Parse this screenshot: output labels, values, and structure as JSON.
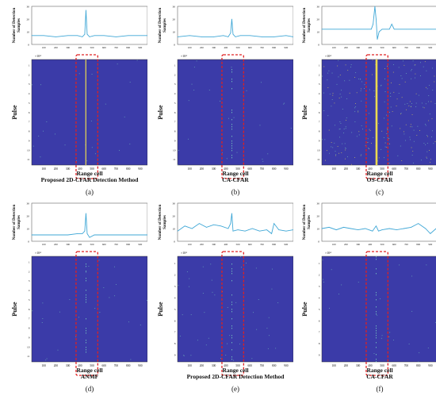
{
  "figure": {
    "panels": [
      {
        "id": "a",
        "letter": "(a)",
        "method": "Proposed 2D-CFAR Detection Method",
        "top_ylabel_line1": "Number of Detection",
        "top_ylabel_line2": "Samples",
        "top_yticks": [
          "30",
          "20",
          "10",
          "0"
        ],
        "scale": "×10⁴",
        "heat_ylabel": "Pulse",
        "heat_yticks": [
          "1",
          "2",
          "3",
          "4",
          "5",
          "6",
          "7",
          "8",
          "9",
          "10",
          "11"
        ],
        "xticks": [
          "100",
          "200",
          "300",
          "400",
          "500",
          "600",
          "700",
          "800",
          "900"
        ],
        "xlabel": "Range cell"
      },
      {
        "id": "b",
        "letter": "(b)",
        "method": "CA-CFAR",
        "top_ylabel_line1": "Number of Detection",
        "top_ylabel_line2": "Samples",
        "top_yticks": [
          "30",
          "20",
          "10",
          "0"
        ],
        "scale": "×10⁴",
        "heat_ylabel": "Pulse",
        "heat_yticks": [
          "1",
          "2",
          "3",
          "4",
          "5",
          "6",
          "7",
          "8",
          "9",
          "10",
          "11"
        ],
        "xticks": [
          "100",
          "200",
          "300",
          "400",
          "500",
          "600",
          "700",
          "800",
          "900"
        ],
        "xlabel": "Range cell"
      },
      {
        "id": "c",
        "letter": "(c)",
        "method": "OS-CFAR",
        "top_ylabel_line1": "Number of Detection",
        "top_ylabel_line2": "Samples",
        "top_yticks": [
          "30",
          "20",
          "10",
          "0"
        ],
        "scale": "×10⁴",
        "heat_ylabel": "Pulse",
        "heat_yticks": [
          "1",
          "2",
          "3",
          "4",
          "5",
          "6",
          "7",
          "8",
          "9",
          "10",
          "11"
        ],
        "xticks": [
          "100",
          "200",
          "300",
          "400",
          "500",
          "600",
          "700",
          "800",
          "900"
        ],
        "xlabel": "Range cell"
      },
      {
        "id": "d",
        "letter": "(d)",
        "method": "ANMF",
        "top_ylabel_line1": "Number of Detection",
        "top_ylabel_line2": "Samples",
        "top_yticks": [
          "30",
          "20",
          "10",
          "0"
        ],
        "scale": "×10⁴",
        "heat_ylabel": "Pulse",
        "heat_yticks": [
          "1",
          "2",
          "3",
          "4",
          "5",
          "6",
          "7",
          "8",
          "9",
          "10",
          "11"
        ],
        "xticks": [
          "100",
          "200",
          "300",
          "400",
          "500",
          "600",
          "700",
          "800",
          "900"
        ],
        "xlabel": "Range cell"
      },
      {
        "id": "e",
        "letter": "(e)",
        "method": "Proposed 2D-CFAR Detection Method",
        "top_ylabel_line1": "Number of Detection",
        "top_ylabel_line2": "Samples",
        "top_yticks": [
          "30",
          "20",
          "10",
          "0"
        ],
        "scale": "×10⁴",
        "heat_ylabel": "Pulse",
        "heat_yticks": [
          "1",
          "2",
          "3",
          "4",
          "5",
          "6",
          "7",
          "8",
          "9"
        ],
        "xticks": [
          "100",
          "200",
          "300",
          "400",
          "500",
          "600",
          "700",
          "800",
          "900"
        ],
        "xlabel": "Range cell"
      },
      {
        "id": "f",
        "letter": "(f)",
        "method": "CA-CFAR",
        "top_ylabel_line1": "Number of Detection",
        "top_ylabel_line2": "Samples",
        "top_yticks": [
          "30",
          "20",
          "10",
          "0"
        ],
        "scale": "×10⁴",
        "heat_ylabel": "Pulse",
        "heat_yticks": [
          "1",
          "2",
          "3",
          "4",
          "5",
          "6",
          "7",
          "8",
          "9"
        ],
        "xticks": [
          "100",
          "200",
          "300",
          "400",
          "500",
          "600",
          "700",
          "800",
          "900"
        ],
        "xlabel": "Range cell"
      }
    ]
  },
  "chart_data": [
    {
      "type": "line",
      "panel": "a",
      "xlim": [
        0,
        960
      ],
      "ylim": [
        0,
        30
      ],
      "x": [
        0,
        100,
        200,
        300,
        380,
        420,
        440,
        450,
        460,
        480,
        520,
        600,
        700,
        800,
        900,
        960
      ],
      "y": [
        7,
        7,
        6,
        7,
        7,
        6,
        8,
        27,
        8,
        6,
        7,
        7,
        6,
        7,
        7,
        7
      ]
    },
    {
      "type": "line",
      "panel": "b",
      "xlim": [
        0,
        960
      ],
      "ylim": [
        0,
        30
      ],
      "x": [
        0,
        100,
        200,
        300,
        380,
        420,
        440,
        450,
        460,
        480,
        520,
        600,
        700,
        800,
        900,
        960
      ],
      "y": [
        6,
        7,
        6,
        6,
        7,
        6,
        9,
        20,
        8,
        6,
        7,
        7,
        6,
        6,
        7,
        6
      ]
    },
    {
      "type": "line",
      "panel": "c",
      "xlim": [
        0,
        960
      ],
      "ylim": [
        0,
        30
      ],
      "x": [
        0,
        100,
        200,
        300,
        380,
        410,
        425,
        440,
        450,
        460,
        475,
        500,
        560,
        580,
        600,
        700,
        800,
        900,
        960
      ],
      "y": [
        12,
        12,
        12,
        12,
        12,
        12,
        16,
        30,
        20,
        4,
        10,
        12,
        12,
        16,
        12,
        12,
        12,
        12,
        12
      ]
    },
    {
      "type": "line",
      "panel": "d",
      "xlim": [
        0,
        960
      ],
      "ylim": [
        0,
        30
      ],
      "x": [
        0,
        100,
        200,
        300,
        380,
        420,
        440,
        450,
        460,
        480,
        520,
        600,
        700,
        800,
        900,
        960
      ],
      "y": [
        5,
        5,
        5,
        5,
        6,
        6,
        8,
        22,
        6,
        3,
        5,
        5,
        5,
        5,
        5,
        5
      ]
    },
    {
      "type": "line",
      "panel": "e",
      "xlim": [
        0,
        960
      ],
      "ylim": [
        0,
        30
      ],
      "x": [
        0,
        60,
        120,
        180,
        240,
        300,
        360,
        420,
        440,
        450,
        460,
        500,
        560,
        620,
        680,
        740,
        780,
        800,
        840,
        900,
        960
      ],
      "y": [
        8,
        12,
        10,
        14,
        11,
        13,
        12,
        10,
        14,
        22,
        8,
        9,
        8,
        10,
        8,
        9,
        6,
        14,
        9,
        8,
        9
      ]
    },
    {
      "type": "line",
      "panel": "f",
      "xlim": [
        0,
        960
      ],
      "ylim": [
        0,
        30
      ],
      "x": [
        0,
        60,
        120,
        180,
        240,
        300,
        360,
        420,
        450,
        470,
        500,
        560,
        620,
        680,
        740,
        800,
        860,
        900,
        960
      ],
      "y": [
        10,
        11,
        9,
        11,
        10,
        9,
        10,
        8,
        12,
        8,
        9,
        10,
        9,
        10,
        11,
        14,
        10,
        6,
        11
      ]
    }
  ],
  "colors": {
    "heatmap_bg": "#3b3ba8",
    "line": "#3fa7d6",
    "highlight_box": "#e02020",
    "detection_strong": "#f4e24a",
    "detection_weak": "#7ad0c0"
  }
}
